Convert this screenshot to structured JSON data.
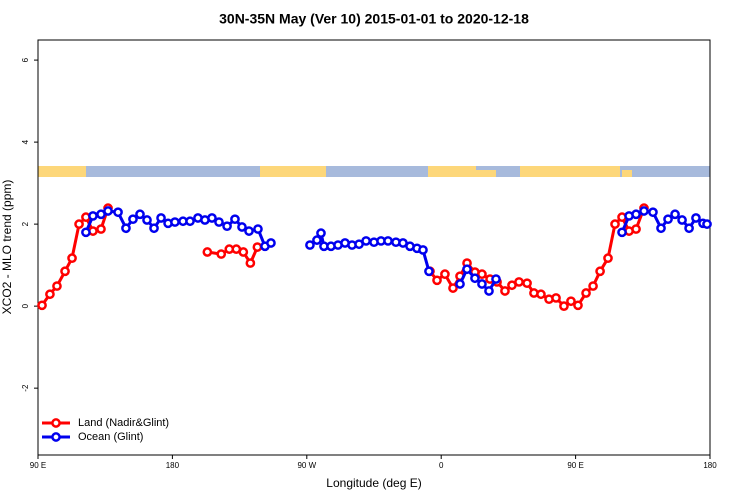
{
  "chart_data": {
    "type": "line",
    "title": "30N-35N May (Ver 10)   2015-01-01 to 2020-12-18",
    "xlabel": "Longitude (deg E)",
    "ylabel": "XCO2 - MLO trend (ppm)",
    "xlim": [
      90,
      540
    ],
    "ylim": [
      -3.63,
      6.49
    ],
    "xticks": [
      {
        "value": 90,
        "label": "90 E"
      },
      {
        "value": 180,
        "label": "180"
      },
      {
        "value": 270,
        "label": "90 W"
      },
      {
        "value": 360,
        "label": "0"
      },
      {
        "value": 450,
        "label": "90 E"
      },
      {
        "value": 540,
        "label": "180"
      }
    ],
    "yticks": [
      -2,
      0,
      2,
      4,
      6
    ],
    "legend": "bottom-left",
    "series": [
      {
        "name": "Land (Nadir&Glint)",
        "color": "#ff0000",
        "x": [
          92.7,
          98.0,
          102.7,
          108.1,
          112.8,
          117.5,
          122.1,
          126.8,
          132.2,
          136.9,
          null,
          203.4,
          212.7,
          218.1,
          222.8,
          227.5,
          232.2,
          236.9,
          null,
          352.5,
          357.2,
          362.5,
          367.9,
          372.6,
          377.3,
          382.6,
          387.3,
          392.7,
          397.4,
          402.7,
          407.4,
          412.1,
          417.5,
          422.1,
          426.8,
          432.2,
          436.9,
          442.2,
          446.9,
          451.6,
          457.0,
          461.7,
          466.4,
          471.7,
          476.4,
          481.1,
          485.8,
          490.5,
          495.8
        ],
        "values": [
          0.02,
          0.29,
          0.49,
          0.85,
          1.17,
          2.0,
          2.17,
          1.83,
          1.88,
          2.39,
          null,
          1.32,
          1.27,
          1.39,
          1.39,
          1.32,
          1.05,
          1.44,
          null,
          0.85,
          0.63,
          0.78,
          0.44,
          0.73,
          1.05,
          0.83,
          0.78,
          0.66,
          0.59,
          0.37,
          0.51,
          0.59,
          0.56,
          0.32,
          0.29,
          0.17,
          0.2,
          0.0,
          0.12,
          0.02,
          0.32,
          0.49,
          0.85,
          1.17,
          2.0,
          2.17,
          1.83,
          1.88,
          2.39
        ]
      },
      {
        "name": "Ocean (Glint)",
        "color": "#0000ee",
        "x": [
          122.1,
          126.8,
          132.2,
          136.9,
          143.6,
          148.9,
          153.6,
          158.3,
          163.0,
          167.7,
          172.4,
          177.1,
          181.7,
          187.1,
          191.8,
          197.1,
          201.8,
          206.5,
          211.2,
          216.6,
          221.9,
          226.6,
          231.3,
          237.3,
          242.0,
          246.0,
          null,
          272.1,
          276.8,
          279.5,
          281.5,
          286.2,
          290.9,
          295.6,
          300.3,
          305.0,
          309.7,
          315.0,
          319.7,
          324.4,
          329.7,
          334.4,
          339.1,
          343.8,
          347.8,
          351.8,
          null,
          372.6,
          377.3,
          382.6,
          387.3,
          392.0,
          396.7,
          null,
          481.1,
          485.8,
          490.5,
          495.8,
          501.8,
          507.2,
          511.9,
          516.6,
          521.3,
          526.0,
          530.6,
          535.3,
          538.0
        ],
        "values": [
          1.8,
          2.2,
          2.24,
          2.32,
          2.29,
          1.9,
          2.12,
          2.24,
          2.1,
          1.9,
          2.15,
          2.02,
          2.05,
          2.07,
          2.07,
          2.15,
          2.1,
          2.15,
          2.05,
          1.95,
          2.12,
          1.93,
          1.83,
          1.88,
          1.46,
          1.54,
          null,
          1.49,
          1.61,
          1.78,
          1.46,
          1.46,
          1.49,
          1.54,
          1.49,
          1.51,
          1.59,
          1.56,
          1.59,
          1.59,
          1.56,
          1.54,
          1.46,
          1.41,
          1.37,
          0.85,
          null,
          0.54,
          0.9,
          0.68,
          0.54,
          0.37,
          0.66,
          null,
          1.8,
          2.2,
          2.24,
          2.32,
          2.29,
          1.9,
          2.12,
          2.24,
          2.1,
          1.9,
          2.15,
          2.02,
          2.0
        ]
      }
    ]
  }
}
